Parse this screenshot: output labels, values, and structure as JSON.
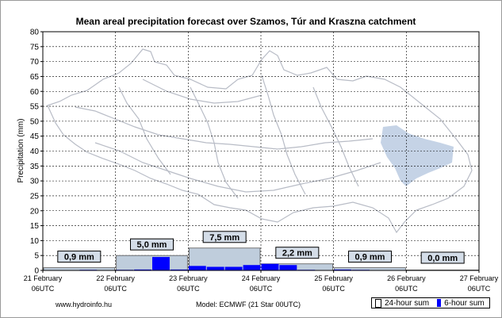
{
  "chart_data": {
    "type": "bar",
    "title": "Mean areal precipitation forecast over Szamos, Túr and Kraszna catchment",
    "ylabel": "Precipitation (mm)",
    "xlabel": "",
    "ylim": [
      0,
      80
    ],
    "yticks": [
      0,
      5,
      10,
      15,
      20,
      25,
      30,
      35,
      40,
      45,
      50,
      55,
      60,
      65,
      70,
      75,
      80
    ],
    "grid": true,
    "x_ticks": [
      {
        "day": "21 February",
        "time": "06UTC"
      },
      {
        "day": "22 February",
        "time": "06UTC"
      },
      {
        "day": "23 February",
        "time": "06UTC"
      },
      {
        "day": "24 February",
        "time": "06UTC"
      },
      {
        "day": "25 February",
        "time": "06UTC"
      },
      {
        "day": "26 February",
        "time": "06UTC"
      },
      {
        "day": "27 February",
        "time": "06UTC"
      }
    ],
    "series": [
      {
        "name": "24-hour sum",
        "values": [
          0.9,
          5.0,
          7.5,
          2.2,
          0.9,
          0.0
        ],
        "labels": [
          "0,9 mm",
          "5,0 mm",
          "7,5 mm",
          "2,2 mm",
          "0,9 mm",
          "0,0 mm"
        ],
        "color": "#bfcddc"
      },
      {
        "name": "6-hour sum",
        "values": [
          0.1,
          0.1,
          0.2,
          0.1,
          0.2,
          0.3,
          4.5,
          0.3,
          1.5,
          1.2,
          1.2,
          1.8,
          2.2,
          1.8,
          0.2,
          0.1,
          0.3,
          0.2,
          0.1,
          0.1,
          0.0,
          0.0,
          0.0,
          0.0
        ],
        "color": "#0000ff"
      }
    ],
    "legend": {
      "position": "bottom-right",
      "entries": [
        "24-hour sum",
        "6-hour sum"
      ]
    }
  },
  "footer": {
    "url": "www.hydroinfo.hu",
    "model": "Model:  ECMWF (21   Star 00UTC)"
  },
  "map_fill_color": "#c5d3e6",
  "map_line_color": "#b8bcc6"
}
